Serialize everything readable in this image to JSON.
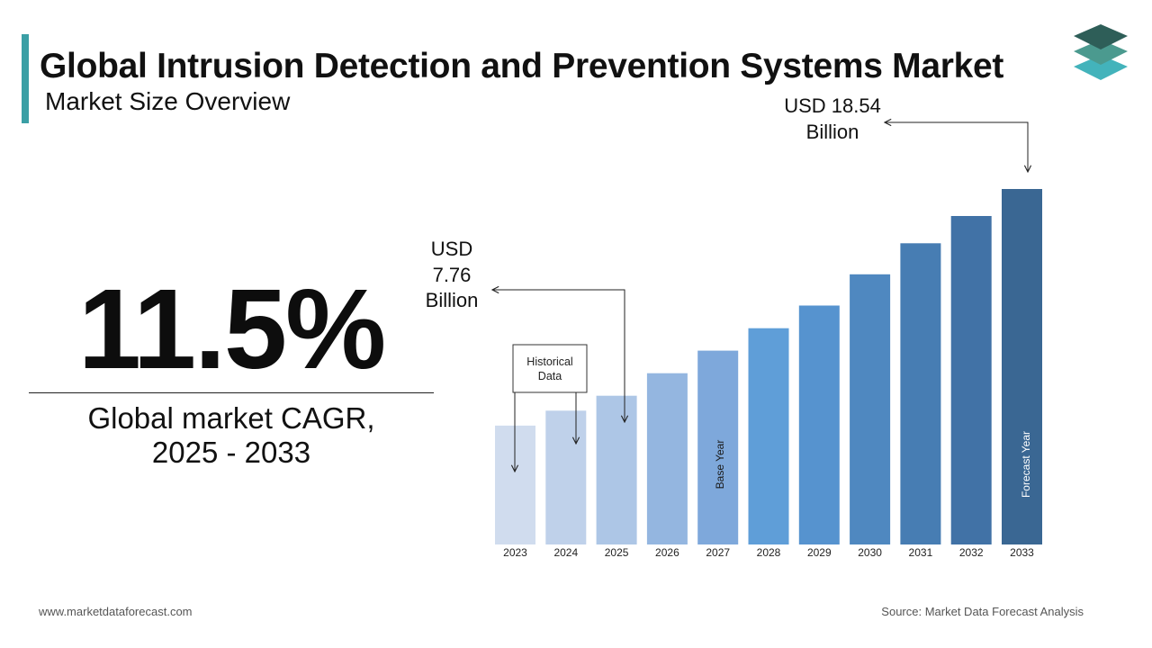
{
  "header": {
    "title": "Global Intrusion Detection and Prevention Systems Market",
    "subtitle": "Market Size Overview"
  },
  "stat": {
    "value": "11.5%",
    "label_line1": "Global market CAGR,",
    "label_line2": "2025 - 2033"
  },
  "footer": {
    "website": "www.marketdataforecast.com",
    "source": "Source: Market Data Forecast Analysis"
  },
  "colors": {
    "accent": "#3a9fa5",
    "logo": [
      "#2e5e58",
      "#4b9a8f",
      "#43b3bb"
    ],
    "bars": [
      "#d0dcee",
      "#bfd1ea",
      "#adc6e6",
      "#94b6e0",
      "#7ea8db",
      "#5f9ed8",
      "#5693cf",
      "#4f88c0",
      "#477db3",
      "#4172a6",
      "#3a6793"
    ]
  },
  "chart_data": {
    "type": "bar",
    "categories": [
      "2023",
      "2024",
      "2025",
      "2026",
      "2027",
      "2028",
      "2029",
      "2030",
      "2031",
      "2032",
      "2033"
    ],
    "values": [
      6.2,
      6.98,
      7.76,
      8.93,
      10.11,
      11.28,
      12.46,
      14.09,
      15.71,
      17.13,
      18.54
    ],
    "ylim": [
      0,
      20
    ],
    "annotations": {
      "start_value": {
        "line1": "USD",
        "line2": "7.76",
        "line3": "Billion"
      },
      "end_value": {
        "line1": "USD 18.54",
        "line2": "Billion"
      },
      "historical_box": {
        "line1": "Historical",
        "line2": "Data"
      },
      "base_year_label": "Base Year",
      "forecast_year_label": "Forecast Year"
    }
  }
}
